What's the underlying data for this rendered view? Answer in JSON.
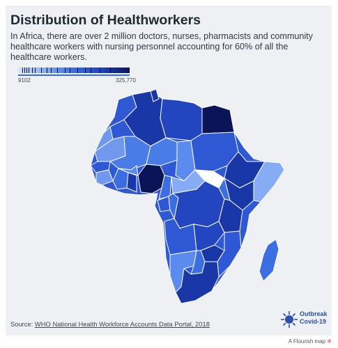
{
  "title": "Distribution of Healthworkers",
  "subtitle": "In Africa, there are over 2 million doctors, nurses, pharmacists and community healthcare workers with nursing personnel accounting for 60% of all the healthcare workers.",
  "legend": {
    "min_label": "9102",
    "max_label": "325,770",
    "min_value": 9102,
    "max_value": 325770
  },
  "map": {
    "region": "Africa",
    "fill_shades": [
      "#0c1458",
      "#1a37a8",
      "#2e58d4",
      "#3c6ee2",
      "#5b8bef",
      "#86acf5"
    ],
    "notable_darkest": [
      "Nigeria",
      "Egypt"
    ]
  },
  "source": {
    "prefix": "Source: ",
    "link_text": "WHO National Health Workforce Accounts Data Portal, 2018"
  },
  "logo": {
    "line1": "Outbreak",
    "line2": "Covid-19"
  },
  "footer": {
    "credit": "A Flourish map"
  }
}
